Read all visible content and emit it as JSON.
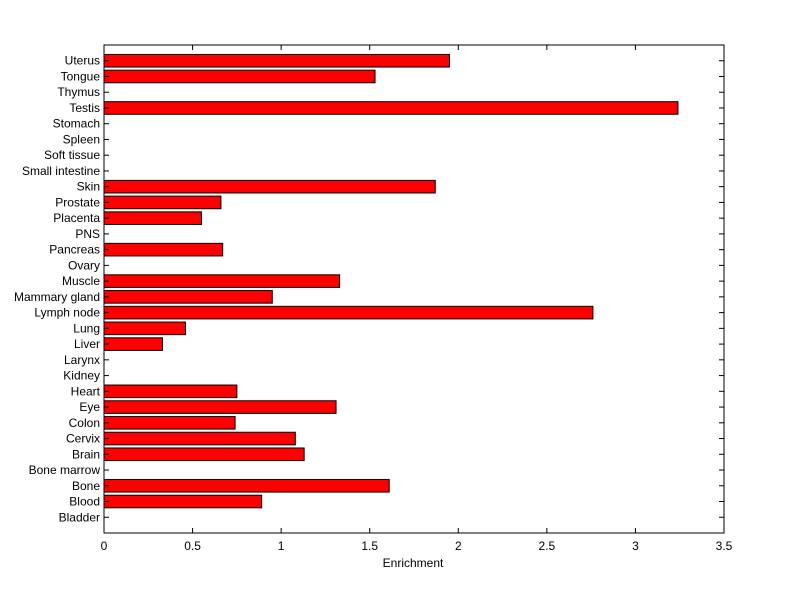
{
  "chart_data": {
    "type": "bar",
    "orientation": "horizontal",
    "categories": [
      "Bladder",
      "Blood",
      "Bone",
      "Bone marrow",
      "Brain",
      "Cervix",
      "Colon",
      "Eye",
      "Heart",
      "Kidney",
      "Larynx",
      "Liver",
      "Lung",
      "Lymph node",
      "Mammary gland",
      "Muscle",
      "Ovary",
      "Pancreas",
      "PNS",
      "Placenta",
      "Prostate",
      "Skin",
      "Small intestine",
      "Soft tissue",
      "Spleen",
      "Stomach",
      "Testis",
      "Thymus",
      "Tongue",
      "Uterus"
    ],
    "values": [
      0,
      0.89,
      1.61,
      0,
      1.13,
      1.08,
      0.74,
      1.31,
      0.75,
      0,
      0,
      0.33,
      0.46,
      2.76,
      0.95,
      1.33,
      0,
      0.67,
      0,
      0.55,
      0.66,
      1.87,
      0,
      0,
      0,
      0,
      3.24,
      0,
      1.53,
      1.95
    ],
    "title": "",
    "xlabel": "Enrichment",
    "ylabel": "",
    "xlim": [
      0,
      3.5
    ],
    "xticks": [
      "0",
      "0.5",
      "1",
      "1.5",
      "2",
      "2.5",
      "3",
      "3.5"
    ],
    "xtick_values": [
      0,
      0.5,
      1,
      1.5,
      2,
      2.5,
      3,
      3.5
    ],
    "grid": false,
    "bar_color": "#ff0000",
    "edge_color": "#000000"
  }
}
